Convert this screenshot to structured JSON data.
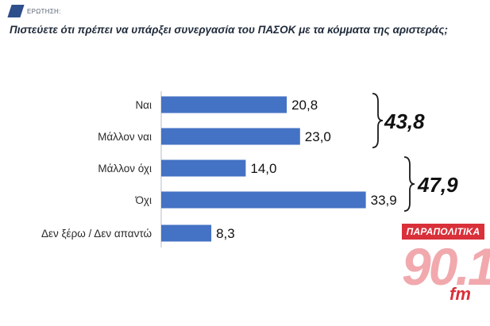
{
  "header": {
    "tag": "ΕΡΩΤΗΣΗ:",
    "question": "Πιστεύετε ότι πρέπει να υπάρξει συνεργασία του ΠΑΣΟΚ με τα κόμματα της αριστεράς;"
  },
  "chart_data": {
    "type": "bar",
    "orientation": "horizontal",
    "categories": [
      "Ναι",
      "Μάλλον ναι",
      "Μάλλον όχι",
      "Όχι",
      "Δεν ξέρω / Δεν απαντώ"
    ],
    "values": [
      20.8,
      23.0,
      14.0,
      33.9,
      8.3
    ],
    "value_labels": [
      "20,8",
      "23,0",
      "14,0",
      "33,9",
      "8,3"
    ],
    "bar_color": "#4472c4",
    "xlim": [
      0,
      34
    ],
    "grid": false,
    "groups": [
      {
        "categories": [
          "Ναι",
          "Μάλλον ναι"
        ],
        "total_label": "43,8"
      },
      {
        "categories": [
          "Μάλλον όχι",
          "Όχι"
        ],
        "total_label": "47,9"
      }
    ]
  },
  "logo": {
    "top": "ΠΑΡΑΠΟΛΙΤΙΚΑ",
    "number": "90.1",
    "suffix": "fm"
  }
}
